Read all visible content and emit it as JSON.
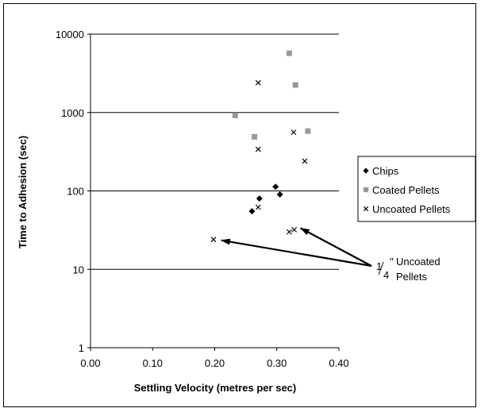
{
  "chart_data": {
    "type": "scatter",
    "xlabel": "Settling Velocity (metres per sec)",
    "ylabel": "Time to Adhesion (sec)",
    "xlim": [
      0,
      0.4
    ],
    "ylim": [
      1,
      10000
    ],
    "yscale": "log",
    "x_ticks": [
      "0.00",
      "0.10",
      "0.20",
      "0.30",
      "0.40"
    ],
    "y_ticks": [
      "1",
      "10",
      "100",
      "1000",
      "10000"
    ],
    "grid": "horizontal major gridlines",
    "legend_position": "right",
    "series": [
      {
        "name": "Chips",
        "marker": "diamond",
        "color": "#000000",
        "points": [
          {
            "x": 0.26,
            "y": 55
          },
          {
            "x": 0.272,
            "y": 80
          },
          {
            "x": 0.298,
            "y": 113
          },
          {
            "x": 0.305,
            "y": 90
          }
        ]
      },
      {
        "name": "Coated Pellets",
        "marker": "square",
        "color": "#999999",
        "points": [
          {
            "x": 0.233,
            "y": 920
          },
          {
            "x": 0.264,
            "y": 490
          },
          {
            "x": 0.32,
            "y": 5700
          },
          {
            "x": 0.33,
            "y": 2250
          },
          {
            "x": 0.35,
            "y": 580
          }
        ]
      },
      {
        "name": "Uncoated Pellets",
        "marker": "x",
        "color": "#000000",
        "points": [
          {
            "x": 0.27,
            "y": 2400
          },
          {
            "x": 0.27,
            "y": 340
          },
          {
            "x": 0.327,
            "y": 560
          },
          {
            "x": 0.345,
            "y": 240
          },
          {
            "x": 0.27,
            "y": 62
          },
          {
            "x": 0.198,
            "y": 24
          },
          {
            "x": 0.32,
            "y": 30
          },
          {
            "x": 0.328,
            "y": 32
          }
        ]
      }
    ],
    "annotation": {
      "fraction_num": "1",
      "fraction_den": "4",
      "inch_mark": "\"",
      "line1": "Uncoated",
      "line2": "Pellets",
      "arrow_targets": [
        {
          "x": 0.198,
          "y": 24
        },
        {
          "x": 0.328,
          "y": 32
        }
      ]
    }
  }
}
